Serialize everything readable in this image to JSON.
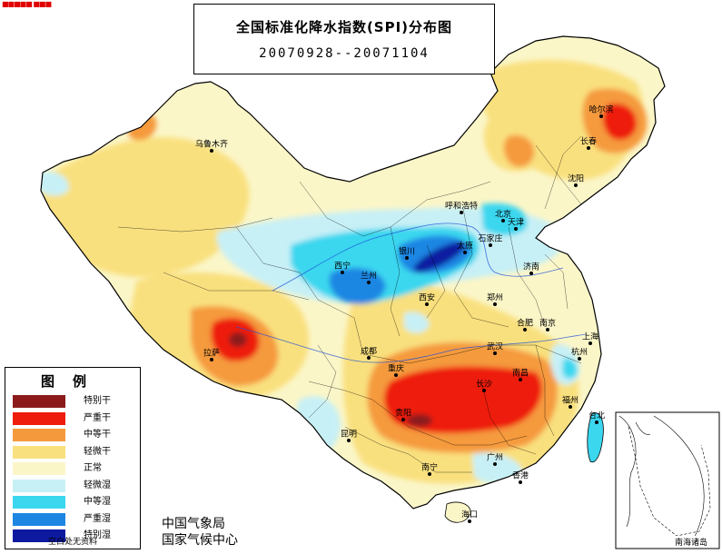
{
  "corner_mark": "■■■■■ ■■■",
  "title": {
    "main": "全国标准化降水指数(SPI)分布图",
    "period": "20070928--20071104"
  },
  "legend": {
    "heading": "图例",
    "items": [
      {
        "label": "特别干",
        "color": "#8b1a1a"
      },
      {
        "label": "严重干",
        "color": "#ee1c0c"
      },
      {
        "label": "中等干",
        "color": "#f59a3c"
      },
      {
        "label": "轻微干",
        "color": "#f9e07e"
      },
      {
        "label": "正常",
        "color": "#fbf6c8"
      },
      {
        "label": "轻微湿",
        "color": "#c7f0f6"
      },
      {
        "label": "中等湿",
        "color": "#3ad7ef"
      },
      {
        "label": "严重湿",
        "color": "#1d86e3"
      },
      {
        "label": "特别湿",
        "color": "#0d1aa0"
      }
    ],
    "note": "空白处无资料"
  },
  "agencies": [
    "中国气象局",
    "国家气候中心"
  ],
  "inset_label": "南海诸岛",
  "cities": [
    {
      "name": "乌鲁木齐",
      "id": "urumqi"
    },
    {
      "name": "哈尔滨",
      "id": "harbin"
    },
    {
      "name": "长春",
      "id": "changchun"
    },
    {
      "name": "沈阳",
      "id": "shenyang"
    },
    {
      "name": "呼和浩特",
      "id": "hohhot"
    },
    {
      "name": "北京",
      "id": "beijing"
    },
    {
      "name": "天津",
      "id": "tianjin"
    },
    {
      "name": "银川",
      "id": "yinchuan"
    },
    {
      "name": "太原",
      "id": "taiyuan"
    },
    {
      "name": "石家庄",
      "id": "shijiazhuang"
    },
    {
      "name": "济南",
      "id": "jinan"
    },
    {
      "name": "西宁",
      "id": "xining"
    },
    {
      "name": "兰州",
      "id": "lanzhou"
    },
    {
      "name": "西安",
      "id": "xian"
    },
    {
      "name": "郑州",
      "id": "zhengzhou"
    },
    {
      "name": "合肥",
      "id": "hefei"
    },
    {
      "name": "南京",
      "id": "nanjing"
    },
    {
      "name": "上海",
      "id": "shanghai"
    },
    {
      "name": "拉萨",
      "id": "lhasa"
    },
    {
      "name": "成都",
      "id": "chengdu"
    },
    {
      "name": "重庆",
      "id": "chongqing"
    },
    {
      "name": "武汉",
      "id": "wuhan"
    },
    {
      "name": "杭州",
      "id": "hangzhou"
    },
    {
      "name": "长沙",
      "id": "changsha"
    },
    {
      "name": "南昌",
      "id": "nanchang"
    },
    {
      "name": "福州",
      "id": "fuzhou"
    },
    {
      "name": "贵阳",
      "id": "guiyang"
    },
    {
      "name": "昆明",
      "id": "kunming"
    },
    {
      "name": "南宁",
      "id": "nanning"
    },
    {
      "name": "广州",
      "id": "guangzhou"
    },
    {
      "name": "香港",
      "id": "hongkong"
    },
    {
      "name": "台北",
      "id": "taipei"
    },
    {
      "name": "海口",
      "id": "haikou"
    }
  ]
}
